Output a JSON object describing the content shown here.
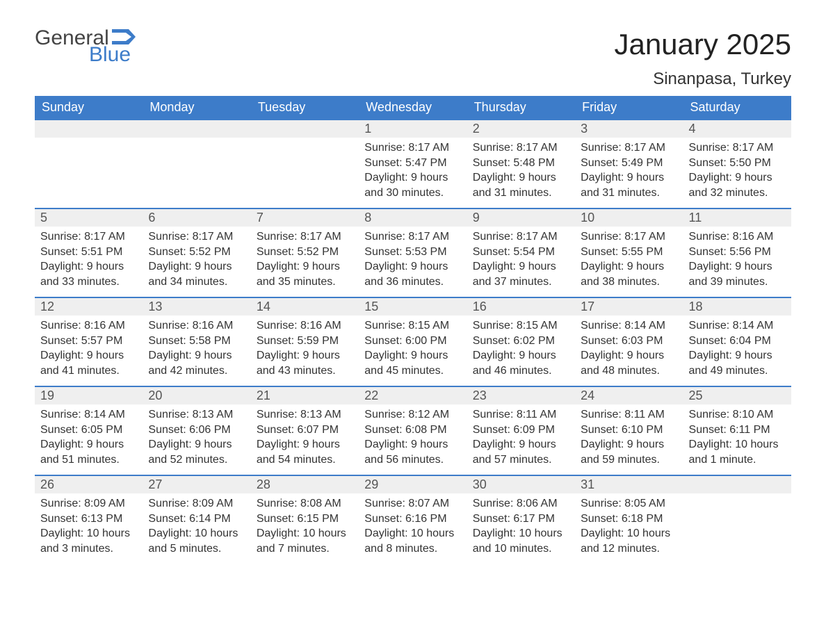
{
  "logo": {
    "word1": "General",
    "word2": "Blue",
    "color_accent": "#3d7cc9",
    "color_text": "#444444"
  },
  "title": "January 2025",
  "location": "Sinanpasa, Turkey",
  "colors": {
    "header_bg": "#3d7cc9",
    "header_text": "#ffffff",
    "daynum_bg": "#efefef",
    "row_border": "#3d7cc9",
    "body_text": "#333333",
    "page_bg": "#ffffff"
  },
  "fonts": {
    "title_size": 42,
    "location_size": 24,
    "th_size": 18,
    "daynum_size": 18,
    "body_size": 16
  },
  "weekdays": [
    "Sunday",
    "Monday",
    "Tuesday",
    "Wednesday",
    "Thursday",
    "Friday",
    "Saturday"
  ],
  "weeks": [
    [
      null,
      null,
      null,
      {
        "n": "1",
        "sunrise": "8:17 AM",
        "sunset": "5:47 PM",
        "daylight": "9 hours and 30 minutes."
      },
      {
        "n": "2",
        "sunrise": "8:17 AM",
        "sunset": "5:48 PM",
        "daylight": "9 hours and 31 minutes."
      },
      {
        "n": "3",
        "sunrise": "8:17 AM",
        "sunset": "5:49 PM",
        "daylight": "9 hours and 31 minutes."
      },
      {
        "n": "4",
        "sunrise": "8:17 AM",
        "sunset": "5:50 PM",
        "daylight": "9 hours and 32 minutes."
      }
    ],
    [
      {
        "n": "5",
        "sunrise": "8:17 AM",
        "sunset": "5:51 PM",
        "daylight": "9 hours and 33 minutes."
      },
      {
        "n": "6",
        "sunrise": "8:17 AM",
        "sunset": "5:52 PM",
        "daylight": "9 hours and 34 minutes."
      },
      {
        "n": "7",
        "sunrise": "8:17 AM",
        "sunset": "5:52 PM",
        "daylight": "9 hours and 35 minutes."
      },
      {
        "n": "8",
        "sunrise": "8:17 AM",
        "sunset": "5:53 PM",
        "daylight": "9 hours and 36 minutes."
      },
      {
        "n": "9",
        "sunrise": "8:17 AM",
        "sunset": "5:54 PM",
        "daylight": "9 hours and 37 minutes."
      },
      {
        "n": "10",
        "sunrise": "8:17 AM",
        "sunset": "5:55 PM",
        "daylight": "9 hours and 38 minutes."
      },
      {
        "n": "11",
        "sunrise": "8:16 AM",
        "sunset": "5:56 PM",
        "daylight": "9 hours and 39 minutes."
      }
    ],
    [
      {
        "n": "12",
        "sunrise": "8:16 AM",
        "sunset": "5:57 PM",
        "daylight": "9 hours and 41 minutes."
      },
      {
        "n": "13",
        "sunrise": "8:16 AM",
        "sunset": "5:58 PM",
        "daylight": "9 hours and 42 minutes."
      },
      {
        "n": "14",
        "sunrise": "8:16 AM",
        "sunset": "5:59 PM",
        "daylight": "9 hours and 43 minutes."
      },
      {
        "n": "15",
        "sunrise": "8:15 AM",
        "sunset": "6:00 PM",
        "daylight": "9 hours and 45 minutes."
      },
      {
        "n": "16",
        "sunrise": "8:15 AM",
        "sunset": "6:02 PM",
        "daylight": "9 hours and 46 minutes."
      },
      {
        "n": "17",
        "sunrise": "8:14 AM",
        "sunset": "6:03 PM",
        "daylight": "9 hours and 48 minutes."
      },
      {
        "n": "18",
        "sunrise": "8:14 AM",
        "sunset": "6:04 PM",
        "daylight": "9 hours and 49 minutes."
      }
    ],
    [
      {
        "n": "19",
        "sunrise": "8:14 AM",
        "sunset": "6:05 PM",
        "daylight": "9 hours and 51 minutes."
      },
      {
        "n": "20",
        "sunrise": "8:13 AM",
        "sunset": "6:06 PM",
        "daylight": "9 hours and 52 minutes."
      },
      {
        "n": "21",
        "sunrise": "8:13 AM",
        "sunset": "6:07 PM",
        "daylight": "9 hours and 54 minutes."
      },
      {
        "n": "22",
        "sunrise": "8:12 AM",
        "sunset": "6:08 PM",
        "daylight": "9 hours and 56 minutes."
      },
      {
        "n": "23",
        "sunrise": "8:11 AM",
        "sunset": "6:09 PM",
        "daylight": "9 hours and 57 minutes."
      },
      {
        "n": "24",
        "sunrise": "8:11 AM",
        "sunset": "6:10 PM",
        "daylight": "9 hours and 59 minutes."
      },
      {
        "n": "25",
        "sunrise": "8:10 AM",
        "sunset": "6:11 PM",
        "daylight": "10 hours and 1 minute."
      }
    ],
    [
      {
        "n": "26",
        "sunrise": "8:09 AM",
        "sunset": "6:13 PM",
        "daylight": "10 hours and 3 minutes."
      },
      {
        "n": "27",
        "sunrise": "8:09 AM",
        "sunset": "6:14 PM",
        "daylight": "10 hours and 5 minutes."
      },
      {
        "n": "28",
        "sunrise": "8:08 AM",
        "sunset": "6:15 PM",
        "daylight": "10 hours and 7 minutes."
      },
      {
        "n": "29",
        "sunrise": "8:07 AM",
        "sunset": "6:16 PM",
        "daylight": "10 hours and 8 minutes."
      },
      {
        "n": "30",
        "sunrise": "8:06 AM",
        "sunset": "6:17 PM",
        "daylight": "10 hours and 10 minutes."
      },
      {
        "n": "31",
        "sunrise": "8:05 AM",
        "sunset": "6:18 PM",
        "daylight": "10 hours and 12 minutes."
      },
      null
    ]
  ],
  "labels": {
    "sunrise": "Sunrise: ",
    "sunset": "Sunset: ",
    "daylight": "Daylight: "
  }
}
